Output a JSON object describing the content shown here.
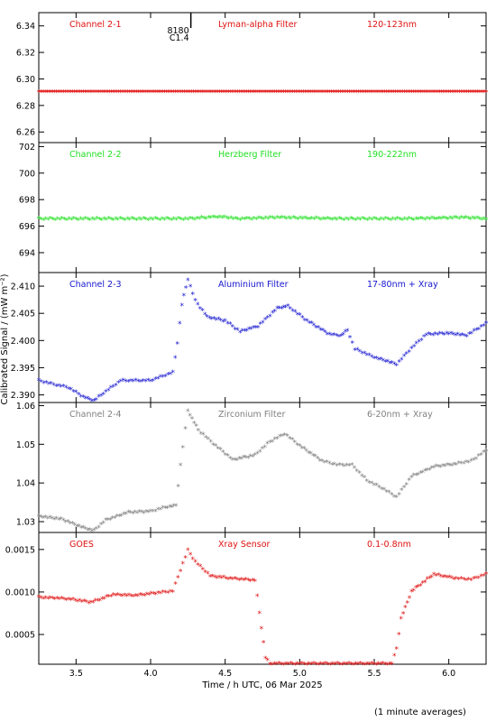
{
  "chart_data": {
    "type": "scatter",
    "xlabel": "Time / h UTC, 06 Mar 2025",
    "ylabel": "Calibrated Signal / (mW m⁻²)",
    "footnote": "(1 minute averages)",
    "xlim": [
      3.25,
      6.25
    ],
    "xticks": [
      "3.5",
      "4.0",
      "4.5",
      "5.0",
      "5.5",
      "6.0"
    ],
    "marker": "*",
    "panels": [
      {
        "label": "Channel 2-1",
        "filter": "Lyman-alpha Filter",
        "range": "120-123nm",
        "color": "#e01010",
        "ylim": [
          6.252,
          6.35
        ],
        "yticks": [
          "6.26",
          "6.28",
          "6.30",
          "6.32",
          "6.34"
        ],
        "annotation": [
          "8180",
          "C1.4"
        ],
        "annotation_x": 4.27,
        "points": [
          [
            3.25,
            6.29
          ],
          [
            3.75,
            6.29
          ],
          [
            4.25,
            6.29
          ],
          [
            4.75,
            6.29
          ],
          [
            5.25,
            6.29
          ],
          [
            5.75,
            6.29
          ],
          [
            6.25,
            6.29
          ]
        ]
      },
      {
        "label": "Channel 2-2",
        "filter": "Herzberg Filter",
        "range": "190-222nm",
        "color": "#22e022",
        "ylim": [
          692.5,
          702.3
        ],
        "yticks": [
          "694",
          "696",
          "698",
          "700",
          "702"
        ],
        "points": [
          [
            3.25,
            696.5
          ],
          [
            3.75,
            696.5
          ],
          [
            4.25,
            696.5
          ],
          [
            4.45,
            696.65
          ],
          [
            4.6,
            696.5
          ],
          [
            4.85,
            696.6
          ],
          [
            5.25,
            696.5
          ],
          [
            5.75,
            696.5
          ],
          [
            6.1,
            696.6
          ],
          [
            6.25,
            696.5
          ]
        ]
      },
      {
        "label": "Channel 2-3",
        "filter": "Aluminium Filter",
        "range": "17-80nm + Xray",
        "color": "#1515d0",
        "ylim": [
          2.3886,
          2.4125
        ],
        "yticks": [
          "2.390",
          "2.395",
          "2.400",
          "2.405",
          "2.410"
        ],
        "points": [
          [
            3.25,
            2.3925
          ],
          [
            3.35,
            2.3918
          ],
          [
            3.45,
            2.3912
          ],
          [
            3.55,
            2.3895
          ],
          [
            3.62,
            2.3888
          ],
          [
            3.7,
            2.3905
          ],
          [
            3.8,
            2.3925
          ],
          [
            3.9,
            2.3925
          ],
          [
            4.0,
            2.3925
          ],
          [
            4.1,
            2.3935
          ],
          [
            4.15,
            2.394
          ],
          [
            4.18,
            2.3995
          ],
          [
            4.21,
            2.4065
          ],
          [
            4.25,
            2.4112
          ],
          [
            4.3,
            2.4072
          ],
          [
            4.38,
            2.4042
          ],
          [
            4.5,
            2.4035
          ],
          [
            4.6,
            2.4015
          ],
          [
            4.72,
            2.4025
          ],
          [
            4.85,
            2.4058
          ],
          [
            4.92,
            2.4062
          ],
          [
            5.05,
            2.4035
          ],
          [
            5.2,
            2.401
          ],
          [
            5.28,
            2.4008
          ],
          [
            5.32,
            2.4018
          ],
          [
            5.37,
            2.3983
          ],
          [
            5.5,
            2.3968
          ],
          [
            5.65,
            2.3955
          ],
          [
            5.75,
            2.3985
          ],
          [
            5.85,
            2.401
          ],
          [
            6.0,
            2.4012
          ],
          [
            6.12,
            2.4008
          ],
          [
            6.25,
            2.403
          ]
        ]
      },
      {
        "label": "Channel 2-4",
        "filter": "Zirconium Filter",
        "range": "6-20nm + Xray",
        "color": "#808080",
        "ylim": [
          1.0272,
          1.0608
        ],
        "yticks": [
          "1.03",
          "1.04",
          "1.05",
          "1.06"
        ],
        "points": [
          [
            3.25,
            1.0312
          ],
          [
            3.4,
            1.0305
          ],
          [
            3.55,
            1.0282
          ],
          [
            3.62,
            1.0275
          ],
          [
            3.7,
            1.0302
          ],
          [
            3.85,
            1.0322
          ],
          [
            4.0,
            1.0325
          ],
          [
            4.1,
            1.0335
          ],
          [
            4.17,
            1.034
          ],
          [
            4.2,
            1.0445
          ],
          [
            4.25,
            1.0585
          ],
          [
            4.32,
            1.0535
          ],
          [
            4.42,
            1.05
          ],
          [
            4.55,
            1.0458
          ],
          [
            4.7,
            1.047
          ],
          [
            4.8,
            1.0505
          ],
          [
            4.9,
            1.0525
          ],
          [
            5.0,
            1.0495
          ],
          [
            5.15,
            1.0455
          ],
          [
            5.25,
            1.0445
          ],
          [
            5.35,
            1.0445
          ],
          [
            5.45,
            1.0405
          ],
          [
            5.55,
            1.0385
          ],
          [
            5.65,
            1.0362
          ],
          [
            5.75,
            1.0415
          ],
          [
            5.9,
            1.044
          ],
          [
            6.05,
            1.0448
          ],
          [
            6.15,
            1.0455
          ],
          [
            6.25,
            1.0482
          ]
        ]
      },
      {
        "label": "GOES",
        "filter": "Xray Sensor",
        "range": "0.1-0.8nm",
        "color": "#e01010",
        "ylim": [
          0.00015,
          0.0017
        ],
        "yticks": [
          "0.0005",
          "0.0010",
          "0.0015"
        ],
        "points": [
          [
            3.25,
            0.00093
          ],
          [
            3.45,
            0.00091
          ],
          [
            3.6,
            0.00087
          ],
          [
            3.75,
            0.00096
          ],
          [
            3.9,
            0.00095
          ],
          [
            4.05,
            0.00098
          ],
          [
            4.15,
            0.001
          ],
          [
            4.2,
            0.00125
          ],
          [
            4.25,
            0.00148
          ],
          [
            4.3,
            0.00135
          ],
          [
            4.4,
            0.00118
          ],
          [
            4.55,
            0.00115
          ],
          [
            4.7,
            0.00113
          ],
          [
            4.73,
            0.00075
          ],
          [
            4.77,
            0.00022
          ],
          [
            4.8,
            0.00015
          ],
          [
            5.0,
            0.00015
          ],
          [
            5.3,
            0.00015
          ],
          [
            5.62,
            0.00015
          ],
          [
            5.65,
            0.00033
          ],
          [
            5.68,
            0.00068
          ],
          [
            5.75,
            0.001
          ],
          [
            5.9,
            0.0012
          ],
          [
            6.05,
            0.00115
          ],
          [
            6.15,
            0.00114
          ],
          [
            6.25,
            0.0012
          ]
        ]
      }
    ]
  }
}
